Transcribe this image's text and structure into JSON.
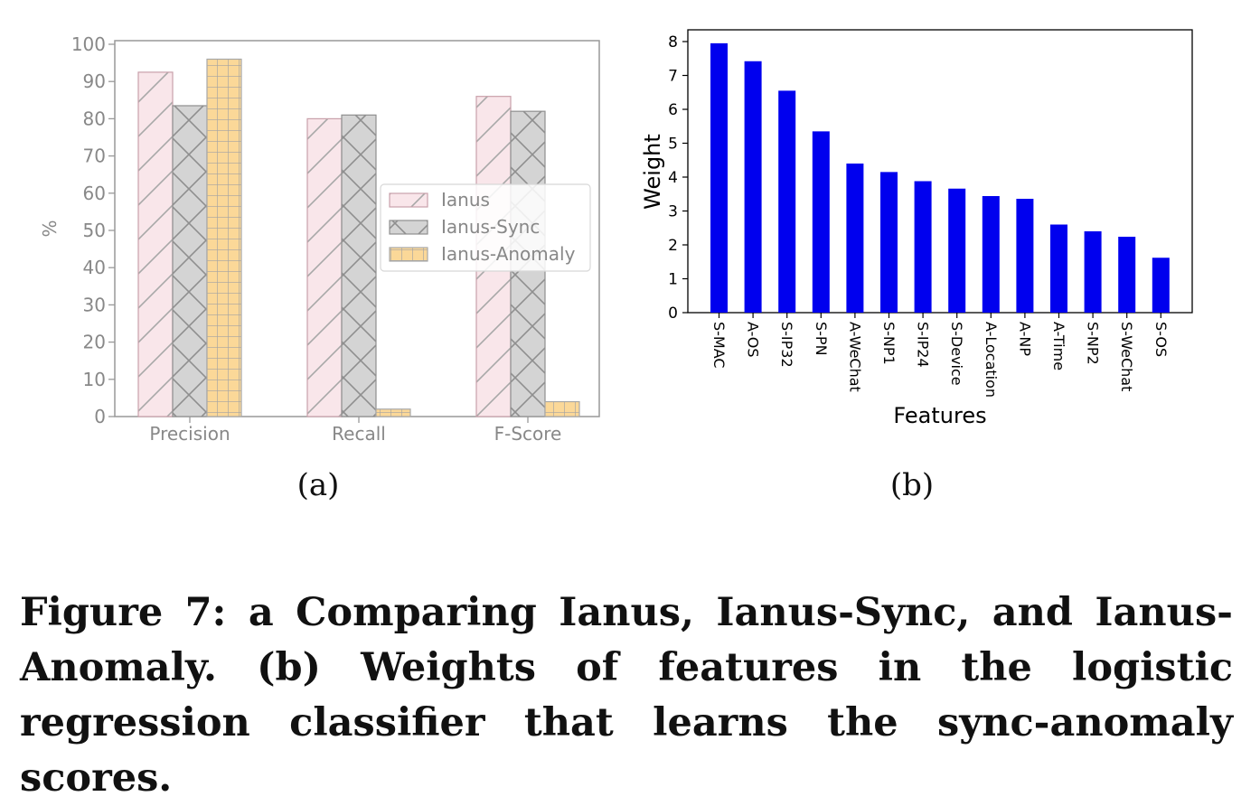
{
  "figure": {
    "subcaption_a": "(a)",
    "subcaption_b": "(b)",
    "caption": "Figure 7: a Comparing Ianus, Ianus-Sync, and Ianus-Anomaly. (b) Weights of features in the logistic regression classifier that learns the sync-anomaly scores."
  },
  "chart_data": [
    {
      "type": "bar",
      "categories": [
        "Precision",
        "Recall",
        "F-Score"
      ],
      "series": [
        {
          "name": "Ianus",
          "values": [
            92.5,
            80,
            86
          ],
          "color": "#f9e6ea",
          "hatch": "diagonal"
        },
        {
          "name": "Ianus-Sync",
          "values": [
            83.5,
            81,
            82
          ],
          "color": "#d4d4d4",
          "hatch": "cross"
        },
        {
          "name": "Ianus-Anomaly",
          "values": [
            96,
            2,
            4
          ],
          "color": "#fbd898",
          "hatch": "grid"
        }
      ],
      "ylabel": "%",
      "xlabel": "",
      "ylim": [
        0,
        100
      ],
      "yticks": [
        0,
        10,
        20,
        30,
        40,
        50,
        60,
        70,
        80,
        90,
        100
      ],
      "legend": "center-right",
      "grid": false
    },
    {
      "type": "bar",
      "categories": [
        "S-MAC",
        "A-OS",
        "S-IP32",
        "S-PN",
        "A-WeChat",
        "S-NP1",
        "S-IP24",
        "S-Device",
        "A-Location",
        "A-NP",
        "A-Time",
        "S-NP2",
        "S-WeChat",
        "S-OS"
      ],
      "values": [
        7.95,
        7.42,
        6.55,
        5.35,
        4.4,
        4.15,
        3.88,
        3.66,
        3.44,
        3.36,
        2.6,
        2.4,
        2.24,
        1.62
      ],
      "color": "#0000ee",
      "xlabel": "Features",
      "ylabel": "Weight",
      "ylim": [
        0,
        8.2
      ],
      "yticks": [
        0,
        1,
        2,
        3,
        4,
        5,
        6,
        7,
        8
      ],
      "grid": false
    }
  ]
}
